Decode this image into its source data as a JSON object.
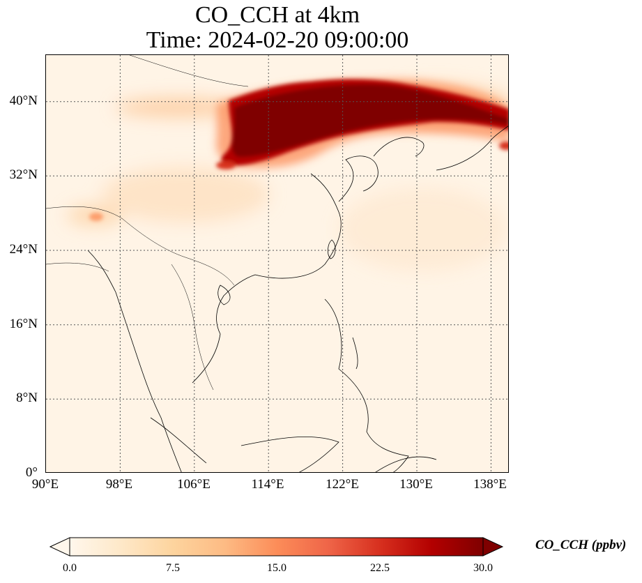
{
  "title": {
    "line1": "CO_CCH at 4km",
    "line2": "Time: 2024-02-20 09:00:00"
  },
  "map": {
    "projection": "PlateCarree",
    "lon_range": [
      90,
      140
    ],
    "lat_range": [
      0,
      45
    ],
    "gridlines": "dotted",
    "lon_ticks": [
      "90°E",
      "98°E",
      "106°E",
      "114°E",
      "122°E",
      "130°E",
      "138°E"
    ],
    "lat_ticks": [
      "0°",
      "8°N",
      "16°N",
      "24°N",
      "32°N",
      "40°N"
    ]
  },
  "colorbar": {
    "label": "CO_CCH (ppbv)",
    "colormap": "OrRd",
    "min": 0.0,
    "max": 30.0,
    "extend": "both",
    "tick_labels": [
      "0.0",
      "7.5",
      "15.0",
      "22.5",
      "30.0"
    ],
    "colors": [
      "#fff7ec",
      "#fee8c8",
      "#fdd49e",
      "#fdbb84",
      "#fc8d59",
      "#ef6548",
      "#d7301f",
      "#b30000",
      "#7f0000"
    ]
  },
  "plume": {
    "description_free": true,
    "max_region": "northern China to Japan near 38–42°N",
    "max_value_class": ">30.0"
  }
}
